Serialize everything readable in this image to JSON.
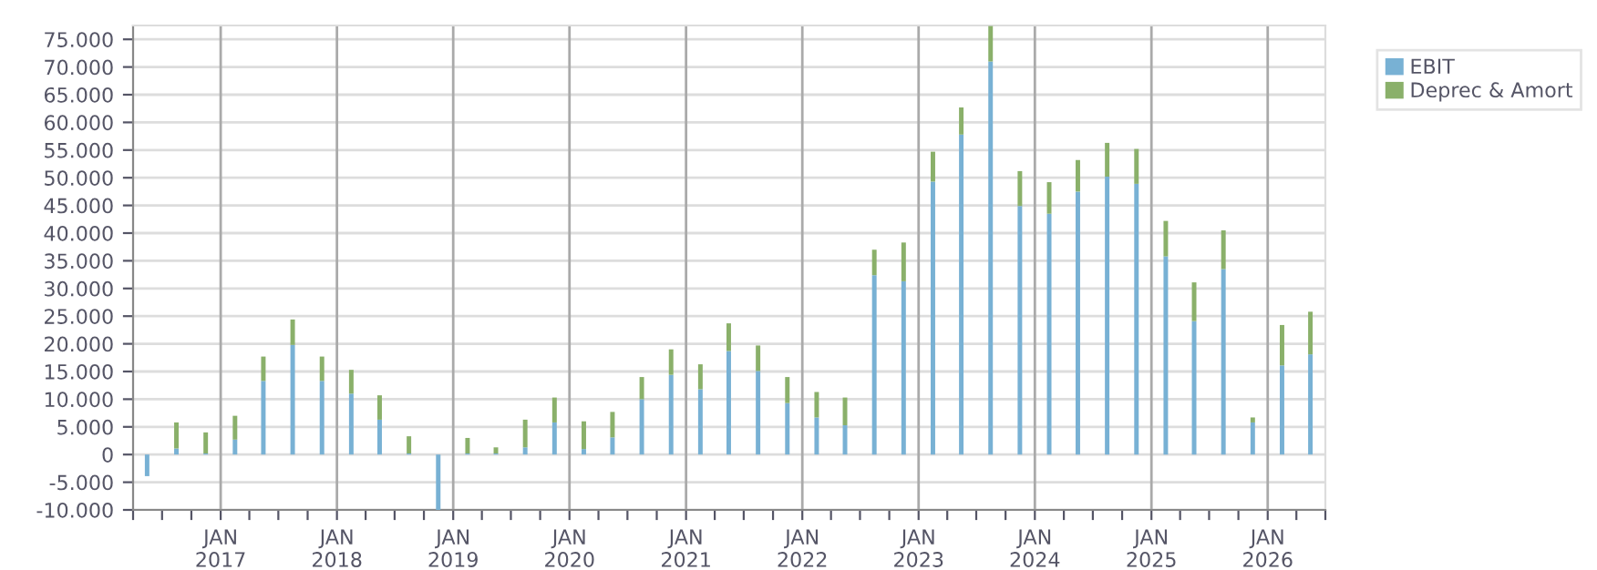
{
  "chart_data": {
    "type": "bar",
    "stacked": true,
    "x": [
      "2016-05-15",
      "2016-08-15",
      "2016-11-15",
      "2017-02-15",
      "2017-05-15",
      "2017-08-15",
      "2017-11-15",
      "2018-02-15",
      "2018-05-15",
      "2018-08-15",
      "2018-11-15",
      "2019-02-15",
      "2019-05-15",
      "2019-08-15",
      "2019-11-15",
      "2020-02-15",
      "2020-05-15",
      "2020-08-15",
      "2020-11-15",
      "2021-02-15",
      "2021-05-15",
      "2021-08-15",
      "2021-11-15",
      "2022-02-15",
      "2022-05-15",
      "2022-08-15",
      "2022-11-15",
      "2023-02-15",
      "2023-05-15",
      "2023-08-15",
      "2023-11-15",
      "2024-02-15",
      "2024-05-15",
      "2024-08-15",
      "2024-11-15",
      "2025-02-15",
      "2025-05-15",
      "2025-08-15",
      "2025-11-15",
      "2026-02-15",
      "2026-05-15"
    ],
    "series": [
      {
        "name": "EBIT",
        "color": "#78b1d4",
        "values": [
          -3900,
          1100,
          200,
          2700,
          13300,
          19800,
          13300,
          11000,
          6300,
          200,
          -10000,
          200,
          200,
          1300,
          5800,
          1000,
          3100,
          10000,
          14400,
          11800,
          18700,
          15100,
          9300,
          6700,
          5300,
          32400,
          31300,
          49300,
          57800,
          71000,
          44900,
          43500,
          47500,
          50200,
          48900,
          35800,
          24100,
          33500,
          5800,
          16100,
          18100
        ]
      },
      {
        "name": "Deprec & Amort",
        "color": "#8ab06a",
        "values": [
          0,
          4700,
          3800,
          4300,
          4400,
          4600,
          4400,
          4300,
          4400,
          3100,
          0,
          2800,
          1100,
          5000,
          4500,
          5000,
          4600,
          4000,
          4600,
          4500,
          5000,
          4600,
          4700,
          4600,
          5000,
          4600,
          7000,
          5400,
          4900,
          6400,
          6300,
          5700,
          5700,
          6100,
          6300,
          6400,
          7000,
          7000,
          900,
          7300,
          7700
        ]
      }
    ],
    "xlim": [
      "2016-04-01",
      "2026-07-01"
    ],
    "xticks": [
      {
        "value": "2016-04-01",
        "label": null
      },
      {
        "value": "2016-07-01",
        "label": null
      },
      {
        "value": "2016-10-01",
        "label": null
      },
      {
        "value": "2017-01-01",
        "label": "JAN\n2017"
      },
      {
        "value": "2017-04-01",
        "label": null
      },
      {
        "value": "2017-07-01",
        "label": null
      },
      {
        "value": "2017-10-01",
        "label": null
      },
      {
        "value": "2018-01-01",
        "label": "JAN\n2018"
      },
      {
        "value": "2018-04-01",
        "label": null
      },
      {
        "value": "2018-07-01",
        "label": null
      },
      {
        "value": "2018-10-01",
        "label": null
      },
      {
        "value": "2019-01-01",
        "label": "JAN\n2019"
      },
      {
        "value": "2019-04-01",
        "label": null
      },
      {
        "value": "2019-07-01",
        "label": null
      },
      {
        "value": "2019-10-01",
        "label": null
      },
      {
        "value": "2020-01-01",
        "label": "JAN\n2020"
      },
      {
        "value": "2020-04-01",
        "label": null
      },
      {
        "value": "2020-07-01",
        "label": null
      },
      {
        "value": "2020-10-01",
        "label": null
      },
      {
        "value": "2021-01-01",
        "label": "JAN\n2021"
      },
      {
        "value": "2021-04-01",
        "label": null
      },
      {
        "value": "2021-07-01",
        "label": null
      },
      {
        "value": "2021-10-01",
        "label": null
      },
      {
        "value": "2022-01-01",
        "label": "JAN\n2022"
      },
      {
        "value": "2022-04-01",
        "label": null
      },
      {
        "value": "2022-07-01",
        "label": null
      },
      {
        "value": "2022-10-01",
        "label": null
      },
      {
        "value": "2023-01-01",
        "label": "JAN\n2023"
      },
      {
        "value": "2023-04-01",
        "label": null
      },
      {
        "value": "2023-07-01",
        "label": null
      },
      {
        "value": "2023-10-01",
        "label": null
      },
      {
        "value": "2024-01-01",
        "label": "JAN\n2024"
      },
      {
        "value": "2024-04-01",
        "label": null
      },
      {
        "value": "2024-07-01",
        "label": null
      },
      {
        "value": "2024-10-01",
        "label": null
      },
      {
        "value": "2025-01-01",
        "label": "JAN\n2025"
      },
      {
        "value": "2025-04-01",
        "label": null
      },
      {
        "value": "2025-07-01",
        "label": null
      },
      {
        "value": "2025-10-01",
        "label": null
      },
      {
        "value": "2026-01-01",
        "label": "JAN\n2026"
      },
      {
        "value": "2026-04-01",
        "label": null
      },
      {
        "value": "2026-07-01",
        "label": null
      }
    ],
    "ylim": [
      -10000,
      77500
    ],
    "yticks": [
      {
        "value": -10000,
        "label": "-10.000"
      },
      {
        "value": -5000,
        "label": "-5.000"
      },
      0,
      {
        "value": 5000,
        "label": "5.000"
      },
      {
        "value": 10000,
        "label": "10.000"
      },
      {
        "value": 15000,
        "label": "15.000"
      },
      {
        "value": 20000,
        "label": "20.000"
      },
      {
        "value": 25000,
        "label": "25.000"
      },
      {
        "value": 30000,
        "label": "30.000"
      },
      {
        "value": 35000,
        "label": "35.000"
      },
      {
        "value": 40000,
        "label": "40.000"
      },
      {
        "value": 45000,
        "label": "45.000"
      },
      {
        "value": 50000,
        "label": "50.000"
      },
      {
        "value": 55000,
        "label": "55.000"
      },
      {
        "value": 60000,
        "label": "60.000"
      },
      {
        "value": 65000,
        "label": "65.000"
      },
      {
        "value": 70000,
        "label": "70.000"
      },
      {
        "value": 75000,
        "label": "75.000"
      }
    ],
    "grid": true,
    "legend": "top right"
  }
}
